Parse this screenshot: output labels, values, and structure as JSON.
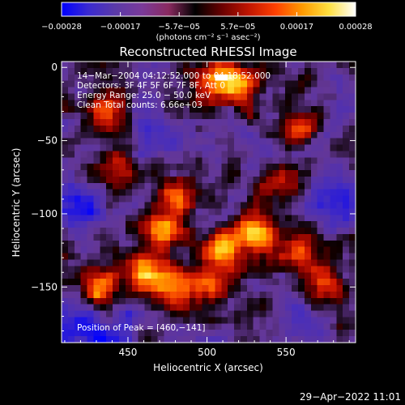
{
  "chart_data": {
    "type": "heatmap",
    "title": "Reconstructed RHESSI Image",
    "xlabel": "Heliocentric X (arcsec)",
    "ylabel": "Heliocentric Y (arcsec)",
    "xlim": [
      408,
      594
    ],
    "ylim": [
      -188,
      4
    ],
    "xticks": [
      {
        "value": 450,
        "label": "450"
      },
      {
        "value": 500,
        "label": "500"
      },
      {
        "value": 550,
        "label": "550"
      }
    ],
    "yticks": [
      {
        "value": 0,
        "label": "0"
      },
      {
        "value": -50,
        "label": "−50"
      },
      {
        "value": -100,
        "label": "−100"
      },
      {
        "value": -150,
        "label": "−150"
      }
    ],
    "colorbar": {
      "range": [
        -0.00028,
        0.00028
      ],
      "tick_labels": [
        "−0.00028",
        "−0.00017",
        "−5.7e−05",
        "5.7e−05",
        "0.00017",
        "0.00028"
      ],
      "unit_label": "(photons cm⁻² s⁻¹ asec⁻²)",
      "colors": [
        "#0000ff",
        "#3a2ad0",
        "#5a3aa8",
        "#7a3a9a",
        "#8a2a60",
        "#000000",
        "#6a0000",
        "#c01500",
        "#ff4000",
        "#ff9a00",
        "#ffe040",
        "#ffffff"
      ]
    },
    "annotations": [
      "14−Mar−2004 04:12:52.000 to 04:18:52.000",
      "Detectors: 3F 4F 5F 6F 7F 8F, Att 0",
      "Energy Range: 25.0 − 50.0 keV",
      "Clean    Total counts: 6.66e+03"
    ],
    "peak_label": "Position of Peak = [460,−141]",
    "bright_regions": [
      {
        "x": 438,
        "y": -30,
        "intensity": 0.85
      },
      {
        "x": 442,
        "y": -70,
        "intensity": 0.6
      },
      {
        "x": 432,
        "y": -150,
        "intensity": 0.9
      },
      {
        "x": 460,
        "y": -141,
        "intensity": 1.0
      },
      {
        "x": 472,
        "y": -112,
        "intensity": 0.95
      },
      {
        "x": 482,
        "y": -88,
        "intensity": 0.8
      },
      {
        "x": 475,
        "y": -150,
        "intensity": 0.75
      },
      {
        "x": 505,
        "y": -8,
        "intensity": 0.8
      },
      {
        "x": 520,
        "y": -12,
        "intensity": 0.85
      },
      {
        "x": 555,
        "y": -45,
        "intensity": 0.95
      },
      {
        "x": 545,
        "y": -75,
        "intensity": 0.7
      },
      {
        "x": 510,
        "y": -125,
        "intensity": 0.95
      },
      {
        "x": 530,
        "y": -112,
        "intensity": 0.95
      },
      {
        "x": 500,
        "y": -148,
        "intensity": 0.7
      },
      {
        "x": 558,
        "y": -128,
        "intensity": 0.7
      },
      {
        "x": 575,
        "y": -152,
        "intensity": 0.6
      }
    ],
    "dim_regions": [
      {
        "x": 418,
        "y": -95,
        "intensity": 0.9
      },
      {
        "x": 545,
        "y": -55,
        "intensity": 0.7
      },
      {
        "x": 585,
        "y": -90,
        "intensity": 0.9
      },
      {
        "x": 440,
        "y": -185,
        "intensity": 0.8
      },
      {
        "x": 410,
        "y": -175,
        "intensity": 0.6
      },
      {
        "x": 470,
        "y": -40,
        "intensity": 0.5
      },
      {
        "x": 560,
        "y": -170,
        "intensity": 0.5
      }
    ]
  },
  "footer": {
    "date_label": "29−Apr−2022 11:01"
  }
}
